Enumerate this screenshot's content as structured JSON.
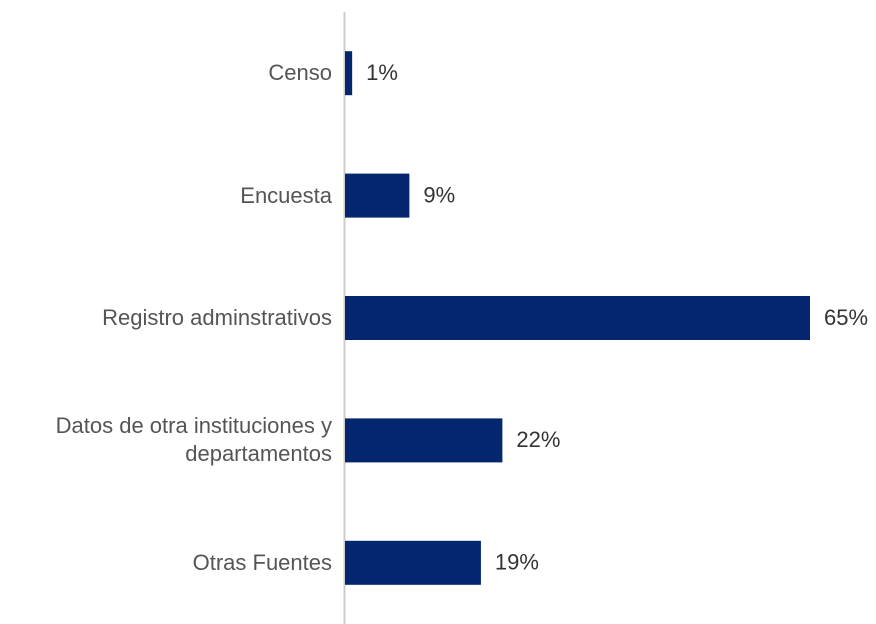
{
  "chart_data": {
    "type": "bar",
    "orientation": "horizontal",
    "categories": [
      "Censo",
      "Encuesta",
      "Registro adminstrativos",
      "Datos de otra instituciones y departamentos",
      "Otras Fuentes"
    ],
    "values": [
      1,
      9,
      65,
      22,
      19
    ],
    "value_labels": [
      "1%",
      "9%",
      "65%",
      "22%",
      "19%"
    ],
    "color": "#03266f"
  }
}
